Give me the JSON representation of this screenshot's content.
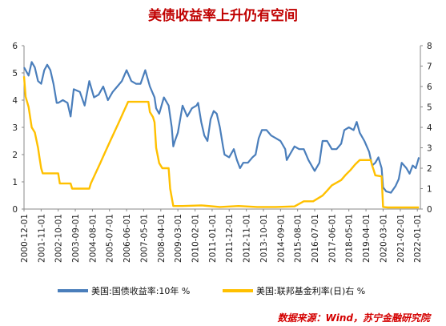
{
  "chart_data": {
    "type": "line",
    "title": "美债收益率上升仍有空间",
    "source": "数据来源：Wind，苏宁金融研究院",
    "y_left": {
      "min": 0,
      "max": 6,
      "ticks": [
        "0",
        "1",
        "2",
        "3",
        "4",
        "5",
        "6"
      ]
    },
    "y_right": {
      "min": 0,
      "max": 8,
      "ticks": [
        "0",
        "1",
        "2",
        "3",
        "4",
        "5",
        "6",
        "7",
        "8"
      ]
    },
    "x_ticks": [
      "2000-12-01",
      "2001-11-01",
      "2002-10-01",
      "2003-09-01",
      "2004-08-01",
      "2005-07-01",
      "2006-06-01",
      "2007-05-01",
      "2008-04-01",
      "2009-03-01",
      "2010-02-01",
      "2011-01-01",
      "2011-12-01",
      "2012-11-01",
      "2013-10-01",
      "2014-09-01",
      "2015-08-01",
      "2016-07-01",
      "2017-06-01",
      "2018-05-01",
      "2019-04-01",
      "2020-03-01",
      "2021-02-01",
      "2022-01-01"
    ],
    "x_range": [
      "2000-12-01",
      "2022-03-01"
    ],
    "series": [
      {
        "name": "美国:国债收益率:10年 %",
        "axis": "left",
        "color": "#4a7ebb",
        "points": [
          [
            "2000-12-01",
            5.2
          ],
          [
            "2001-01-01",
            5.1
          ],
          [
            "2001-03-01",
            4.9
          ],
          [
            "2001-05-01",
            5.4
          ],
          [
            "2001-07-01",
            5.2
          ],
          [
            "2001-09-01",
            4.7
          ],
          [
            "2001-11-01",
            4.6
          ],
          [
            "2002-01-01",
            5.1
          ],
          [
            "2002-03-01",
            5.3
          ],
          [
            "2002-05-01",
            5.1
          ],
          [
            "2002-07-01",
            4.6
          ],
          [
            "2002-09-01",
            3.9
          ],
          [
            "2002-10-01",
            3.9
          ],
          [
            "2003-01-01",
            4.0
          ],
          [
            "2003-04-01",
            3.9
          ],
          [
            "2003-06-01",
            3.4
          ],
          [
            "2003-08-01",
            4.4
          ],
          [
            "2003-12-01",
            4.3
          ],
          [
            "2004-03-01",
            3.8
          ],
          [
            "2004-06-01",
            4.7
          ],
          [
            "2004-09-01",
            4.1
          ],
          [
            "2004-12-01",
            4.2
          ],
          [
            "2005-03-01",
            4.5
          ],
          [
            "2005-06-01",
            4.0
          ],
          [
            "2005-09-01",
            4.3
          ],
          [
            "2005-12-01",
            4.5
          ],
          [
            "2006-03-01",
            4.7
          ],
          [
            "2006-06-01",
            5.1
          ],
          [
            "2006-09-01",
            4.7
          ],
          [
            "2006-12-01",
            4.6
          ],
          [
            "2007-03-01",
            4.6
          ],
          [
            "2007-06-01",
            5.1
          ],
          [
            "2007-09-01",
            4.5
          ],
          [
            "2007-12-01",
            4.1
          ],
          [
            "2008-01-01",
            3.7
          ],
          [
            "2008-03-01",
            3.5
          ],
          [
            "2008-06-01",
            4.1
          ],
          [
            "2008-09-01",
            3.8
          ],
          [
            "2008-11-01",
            3.0
          ],
          [
            "2008-12-01",
            2.3
          ],
          [
            "2009-01-01",
            2.5
          ],
          [
            "2009-03-01",
            2.8
          ],
          [
            "2009-06-01",
            3.8
          ],
          [
            "2009-09-01",
            3.4
          ],
          [
            "2009-12-01",
            3.7
          ],
          [
            "2010-03-01",
            3.8
          ],
          [
            "2010-04-01",
            3.9
          ],
          [
            "2010-06-01",
            3.2
          ],
          [
            "2010-08-01",
            2.7
          ],
          [
            "2010-10-01",
            2.5
          ],
          [
            "2010-12-01",
            3.3
          ],
          [
            "2011-02-01",
            3.6
          ],
          [
            "2011-04-01",
            3.5
          ],
          [
            "2011-06-01",
            3.0
          ],
          [
            "2011-08-01",
            2.3
          ],
          [
            "2011-09-01",
            2.0
          ],
          [
            "2011-12-01",
            1.9
          ],
          [
            "2012-03-01",
            2.2
          ],
          [
            "2012-05-01",
            1.8
          ],
          [
            "2012-07-01",
            1.5
          ],
          [
            "2012-09-01",
            1.7
          ],
          [
            "2012-12-01",
            1.7
          ],
          [
            "2013-03-01",
            1.9
          ],
          [
            "2013-05-01",
            2.0
          ],
          [
            "2013-07-01",
            2.6
          ],
          [
            "2013-09-01",
            2.9
          ],
          [
            "2013-12-01",
            2.9
          ],
          [
            "2014-03-01",
            2.7
          ],
          [
            "2014-06-01",
            2.6
          ],
          [
            "2014-09-01",
            2.5
          ],
          [
            "2014-12-01",
            2.2
          ],
          [
            "2015-01-01",
            1.8
          ],
          [
            "2015-03-01",
            2.0
          ],
          [
            "2015-06-01",
            2.3
          ],
          [
            "2015-09-01",
            2.2
          ],
          [
            "2015-12-01",
            2.2
          ],
          [
            "2016-03-01",
            1.8
          ],
          [
            "2016-07-01",
            1.4
          ],
          [
            "2016-10-01",
            1.7
          ],
          [
            "2016-12-01",
            2.5
          ],
          [
            "2017-03-01",
            2.5
          ],
          [
            "2017-06-01",
            2.2
          ],
          [
            "2017-09-01",
            2.2
          ],
          [
            "2017-12-01",
            2.4
          ],
          [
            "2018-02-01",
            2.9
          ],
          [
            "2018-05-01",
            3.0
          ],
          [
            "2018-08-01",
            2.9
          ],
          [
            "2018-10-01",
            3.2
          ],
          [
            "2018-12-01",
            2.8
          ],
          [
            "2019-03-01",
            2.5
          ],
          [
            "2019-06-01",
            2.1
          ],
          [
            "2019-08-01",
            1.6
          ],
          [
            "2019-10-01",
            1.7
          ],
          [
            "2019-12-01",
            1.9
          ],
          [
            "2020-02-01",
            1.5
          ],
          [
            "2020-03-01",
            0.8
          ],
          [
            "2020-05-01",
            0.65
          ],
          [
            "2020-08-01",
            0.6
          ],
          [
            "2020-11-01",
            0.85
          ],
          [
            "2021-01-01",
            1.1
          ],
          [
            "2021-03-01",
            1.7
          ],
          [
            "2021-06-01",
            1.5
          ],
          [
            "2021-08-01",
            1.3
          ],
          [
            "2021-10-01",
            1.6
          ],
          [
            "2021-12-01",
            1.5
          ],
          [
            "2022-02-01",
            1.9
          ]
        ]
      },
      {
        "name": "美国:联邦基金利率(日)右 %",
        "axis": "right",
        "color": "#ffc000",
        "points": [
          [
            "2000-12-01",
            6.5
          ],
          [
            "2001-01-01",
            5.5
          ],
          [
            "2001-03-01",
            5.0
          ],
          [
            "2001-05-01",
            4.0
          ],
          [
            "2001-07-01",
            3.75
          ],
          [
            "2001-09-01",
            3.0
          ],
          [
            "2001-10-01",
            2.5
          ],
          [
            "2001-11-01",
            2.0
          ],
          [
            "2001-12-01",
            1.75
          ],
          [
            "2002-06-01",
            1.75
          ],
          [
            "2002-10-01",
            1.75
          ],
          [
            "2002-11-01",
            1.25
          ],
          [
            "2003-06-01",
            1.25
          ],
          [
            "2003-07-01",
            1.0
          ],
          [
            "2004-06-01",
            1.0
          ],
          [
            "2004-07-01",
            1.25
          ],
          [
            "2004-10-01",
            1.75
          ],
          [
            "2005-01-01",
            2.25
          ],
          [
            "2005-04-01",
            2.75
          ],
          [
            "2005-07-01",
            3.25
          ],
          [
            "2005-10-01",
            3.75
          ],
          [
            "2006-01-01",
            4.25
          ],
          [
            "2006-04-01",
            4.75
          ],
          [
            "2006-07-01",
            5.25
          ],
          [
            "2007-08-01",
            5.25
          ],
          [
            "2007-09-01",
            4.75
          ],
          [
            "2007-11-01",
            4.5
          ],
          [
            "2007-12-01",
            4.25
          ],
          [
            "2008-01-01",
            3.0
          ],
          [
            "2008-03-01",
            2.25
          ],
          [
            "2008-05-01",
            2.0
          ],
          [
            "2008-09-01",
            2.0
          ],
          [
            "2008-10-01",
            1.0
          ],
          [
            "2008-12-01",
            0.15
          ],
          [
            "2009-06-01",
            0.15
          ],
          [
            "2010-06-01",
            0.18
          ],
          [
            "2011-06-01",
            0.1
          ],
          [
            "2012-06-01",
            0.15
          ],
          [
            "2013-06-01",
            0.1
          ],
          [
            "2014-06-01",
            0.1
          ],
          [
            "2015-06-01",
            0.13
          ],
          [
            "2015-12-01",
            0.38
          ],
          [
            "2016-06-01",
            0.38
          ],
          [
            "2016-12-01",
            0.66
          ],
          [
            "2017-03-01",
            0.9
          ],
          [
            "2017-06-01",
            1.16
          ],
          [
            "2017-12-01",
            1.42
          ],
          [
            "2018-03-01",
            1.68
          ],
          [
            "2018-06-01",
            1.91
          ],
          [
            "2018-09-01",
            2.18
          ],
          [
            "2018-12-01",
            2.4
          ],
          [
            "2019-07-01",
            2.4
          ],
          [
            "2019-08-01",
            2.13
          ],
          [
            "2019-09-01",
            1.9
          ],
          [
            "2019-10-01",
            1.65
          ],
          [
            "2020-02-01",
            1.6
          ],
          [
            "2020-03-01",
            0.1
          ],
          [
            "2020-06-01",
            0.08
          ],
          [
            "2021-06-01",
            0.08
          ],
          [
            "2022-02-01",
            0.08
          ]
        ]
      }
    ]
  }
}
